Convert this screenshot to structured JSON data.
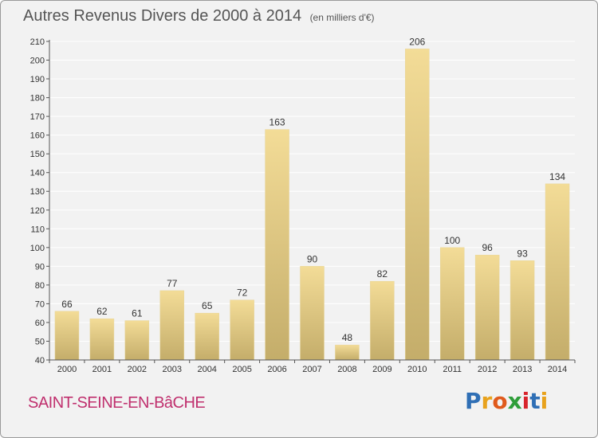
{
  "header": {
    "title": "Autres Revenus Divers de 2000 à 2014",
    "unit": "(en milliers d'€)"
  },
  "footer": {
    "place": "SAINT-SEINE-EN-BâCHE",
    "brand_letters": [
      "P",
      "r",
      "o",
      "x",
      "i",
      "t",
      "i"
    ],
    "brand_colors": [
      "#2f6fb5",
      "#e8a21c",
      "#e05a1c",
      "#2f9e3a",
      "#d8242b",
      "#2f6fb5",
      "#e8a21c"
    ]
  },
  "colors": {
    "bar_light": "#f3dc97",
    "bar_dark": "#c4ad6a",
    "grid": "#ffffff",
    "axis": "#555555",
    "text": "#333333"
  },
  "chart_data": {
    "type": "bar",
    "categories": [
      "2000",
      "2001",
      "2002",
      "2003",
      "2004",
      "2005",
      "2006",
      "2007",
      "2008",
      "2009",
      "2010",
      "2011",
      "2012",
      "2013",
      "2014"
    ],
    "values": [
      66,
      62,
      61,
      77,
      65,
      72,
      163,
      90,
      48,
      82,
      206,
      100,
      96,
      93,
      134
    ],
    "data_labels": [
      "66",
      "62",
      "61",
      "77",
      "65",
      "72",
      "163",
      "90",
      "48",
      "82",
      "206",
      "100",
      "96",
      "93",
      "134"
    ],
    "y_ticks": [
      "40",
      "50",
      "60",
      "70",
      "80",
      "90",
      "100",
      "110",
      "120",
      "130",
      "140",
      "150",
      "160",
      "170",
      "180",
      "190",
      "200",
      "210"
    ],
    "ylim": [
      40,
      210
    ],
    "grid": true,
    "legend": "none"
  }
}
